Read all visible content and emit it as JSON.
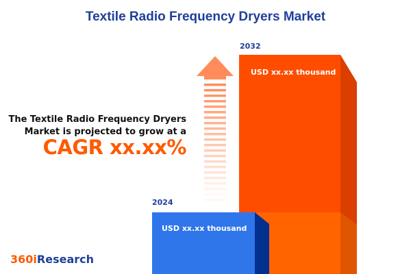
{
  "title": "Textile Radio Frequency Dryers Market",
  "description_line1": "The Textile Radio Frequency Dryers",
  "description_line2": "Market is projected to grow at a",
  "cagr_text": "CAGR xx.xx%",
  "logo": {
    "part1": "360i",
    "part2": "Research"
  },
  "colors": {
    "title": "#1f3f9a",
    "accent": "#ff5a00",
    "bar_2024": "#2f76ea",
    "bar_2032": "#ff4d00",
    "logo_orange": "#ff5a00",
    "logo_blue": "#1f3f9a"
  },
  "chart_data": {
    "type": "bar",
    "categories": [
      "2024",
      "2032"
    ],
    "data_labels": [
      "USD xx.xx thousand",
      "USD xx.xx thousand"
    ],
    "title": "Textile Radio Frequency Dryers Market",
    "annotation": "CAGR xx.xx%",
    "grid": false
  }
}
